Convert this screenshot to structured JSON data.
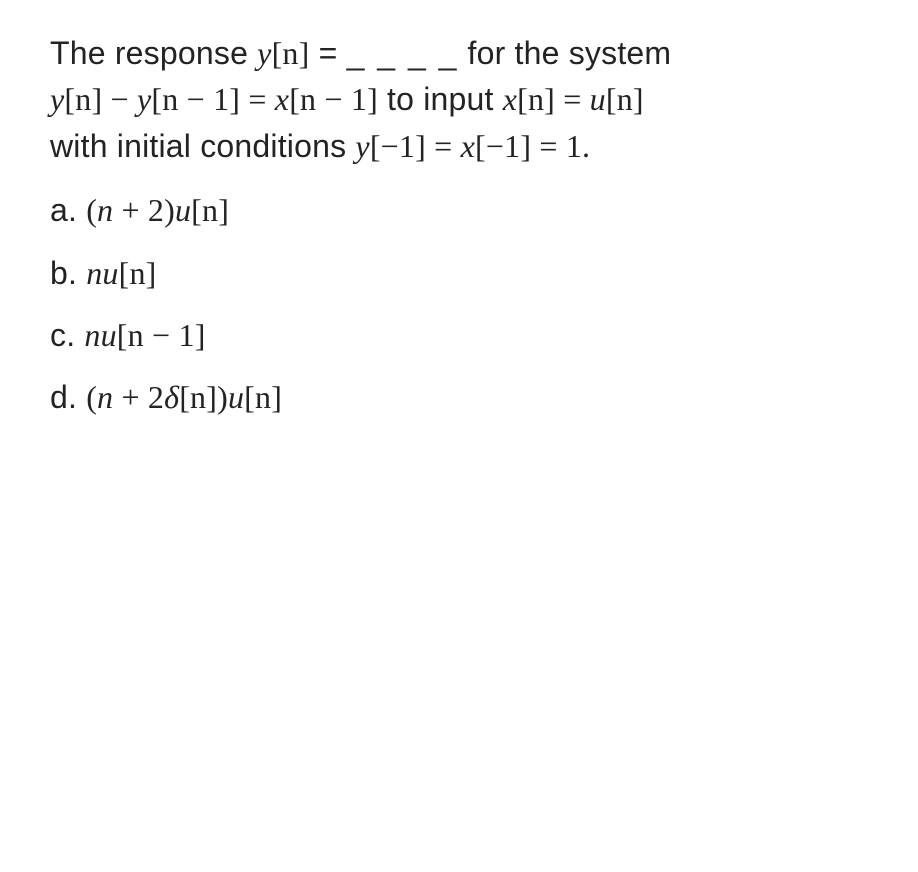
{
  "question": {
    "pre": "The response ",
    "yn": "y",
    "yn_br": "[n]",
    "eq1": " = ",
    "blank": "_ _ _ _",
    "post_blank": " for the system ",
    "line2_y1": "y",
    "line2_br1": "[n] − ",
    "line2_y2": "y",
    "line2_br2": "[n − 1] = ",
    "line2_x": "x",
    "line2_br3": "[n − 1]",
    "line2_to_input": " to input ",
    "line2_x2": "x",
    "line2_br4": "[n] = ",
    "line2_u": "u",
    "line2_br5": "[n]",
    "line3_pre": "with initial conditions ",
    "line3_y": "y",
    "line3_br1": "[−1] = ",
    "line3_x": "x",
    "line3_br2": "[−1] = 1."
  },
  "options": {
    "a": {
      "label": "a. ",
      "p1": "(",
      "n": "n",
      "p2": " + 2)",
      "u": "u",
      "br": "[n]"
    },
    "b": {
      "label": "b. ",
      "nu": "nu",
      "br": "[n]"
    },
    "c": {
      "label": "c. ",
      "nu": "nu",
      "br": "[n − 1]"
    },
    "d": {
      "label": "d. ",
      "p1": "(",
      "n": "n",
      "p2": " + 2",
      "delta": "δ",
      "br1": "[n])",
      "u": "u",
      "br2": "[n]"
    }
  }
}
